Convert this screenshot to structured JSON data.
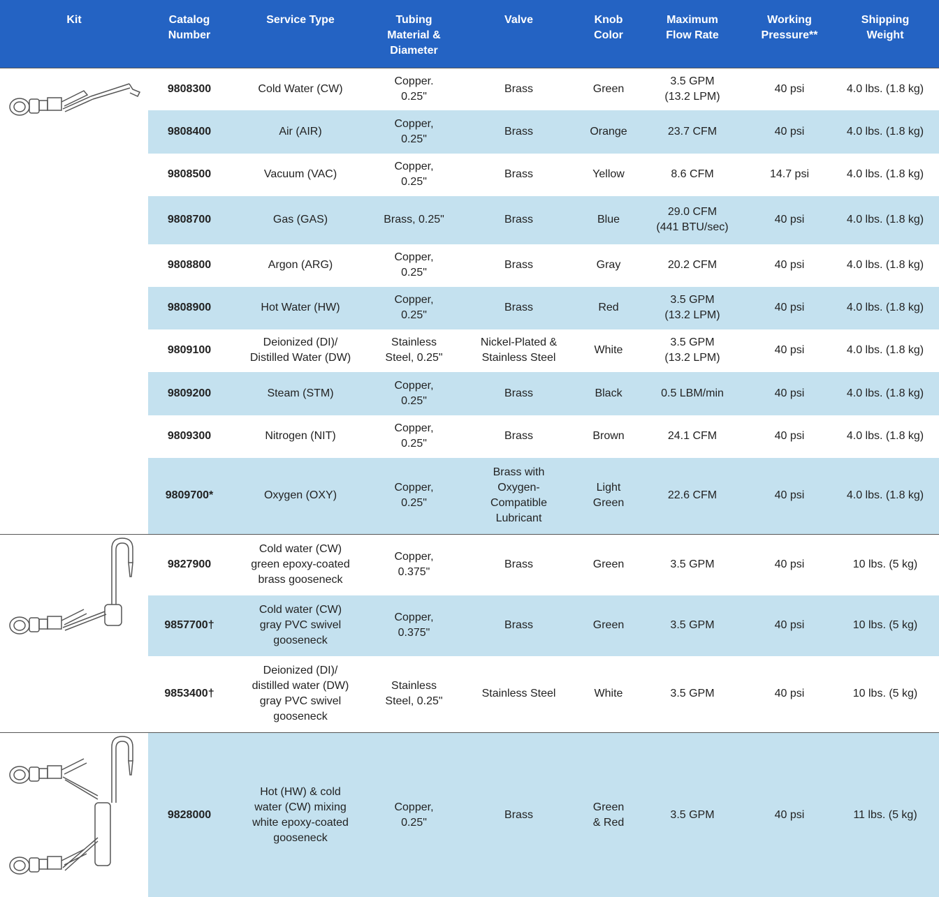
{
  "table": {
    "columns": [
      "Kit",
      "Catalog\nNumber",
      "Service Type",
      "Tubing\nMaterial &\nDiameter",
      "Valve",
      "Knob\nColor",
      "Maximum\nFlow Rate",
      "Working\nPressure**",
      "Shipping\nWeight"
    ],
    "groups": [
      {
        "rows": [
          [
            "9808300",
            "Cold Water (CW)",
            "Copper.\n0.25\"",
            "Brass",
            "Green",
            "3.5 GPM\n(13.2 LPM)",
            "40 psi",
            "4.0 lbs. (1.8 kg)"
          ],
          [
            "9808400",
            "Air (AIR)",
            "Copper,\n0.25\"",
            "Brass",
            "Orange",
            "23.7 CFM",
            "40 psi",
            "4.0 lbs. (1.8 kg)"
          ],
          [
            "9808500",
            "Vacuum (VAC)",
            "Copper,\n0.25\"",
            "Brass",
            "Yellow",
            "8.6 CFM",
            "14.7 psi",
            "4.0 lbs. (1.8 kg)"
          ],
          [
            "9808700",
            "Gas (GAS)",
            "Brass, 0.25\"",
            "Brass",
            "Blue",
            "29.0 CFM\n(441 BTU/sec)",
            "40 psi",
            "4.0 lbs. (1.8 kg)"
          ],
          [
            "9808800",
            "Argon (ARG)",
            "Copper,\n0.25\"",
            "Brass",
            "Gray",
            "20.2 CFM",
            "40 psi",
            "4.0 lbs. (1.8 kg)"
          ],
          [
            "9808900",
            "Hot Water (HW)",
            "Copper,\n0.25\"",
            "Brass",
            "Red",
            "3.5 GPM\n(13.2 LPM)",
            "40 psi",
            "4.0 lbs. (1.8 kg)"
          ],
          [
            "9809100",
            "Deionized (DI)/\nDistilled Water (DW)",
            "Stainless\nSteel, 0.25\"",
            "Nickel-Plated &\nStainless Steel",
            "White",
            "3.5 GPM\n(13.2 LPM)",
            "40 psi",
            "4.0 lbs. (1.8 kg)"
          ],
          [
            "9809200",
            "Steam (STM)",
            "Copper,\n0.25\"",
            "Brass",
            "Black",
            "0.5 LBM/min",
            "40 psi",
            "4.0 lbs. (1.8 kg)"
          ],
          [
            "9809300",
            "Nitrogen (NIT)",
            "Copper,\n0.25\"",
            "Brass",
            "Brown",
            "24.1 CFM",
            "40 psi",
            "4.0 lbs. (1.8 kg)"
          ],
          [
            "9809700*",
            "Oxygen (OXY)",
            "Copper,\n0.25\"",
            "Brass with\nOxygen-\nCompatible\nLubricant",
            "Light\nGreen",
            "22.6 CFM",
            "40 psi",
            "4.0 lbs. (1.8 kg)"
          ]
        ]
      },
      {
        "rows": [
          [
            "9827900",
            "Cold water (CW)\ngreen epoxy-coated\nbrass gooseneck",
            "Copper,\n0.375\"",
            "Brass",
            "Green",
            "3.5 GPM",
            "40 psi",
            "10 lbs. (5 kg)"
          ],
          [
            "9857700†",
            "Cold water (CW)\ngray PVC swivel\ngooseneck",
            "Copper,\n0.375\"",
            "Brass",
            "Green",
            "3.5 GPM",
            "40 psi",
            "10 lbs. (5 kg)"
          ],
          [
            "9853400†",
            "Deionized (DI)/\ndistilled water (DW)\ngray PVC swivel\ngooseneck",
            "Stainless\nSteel, 0.25\"",
            "Stainless Steel",
            "White",
            "3.5 GPM",
            "40 psi",
            "10 lbs. (5 kg)"
          ]
        ]
      },
      {
        "rows": [
          [
            "9828000",
            "Hot (HW) & cold\nwater (CW) mixing\nwhite epoxy-coated\ngooseneck",
            "Copper,\n0.25\"",
            "Brass",
            "Green\n& Red",
            "3.5 GPM",
            "40 psi",
            "11 lbs. (5 kg)"
          ]
        ]
      }
    ]
  }
}
